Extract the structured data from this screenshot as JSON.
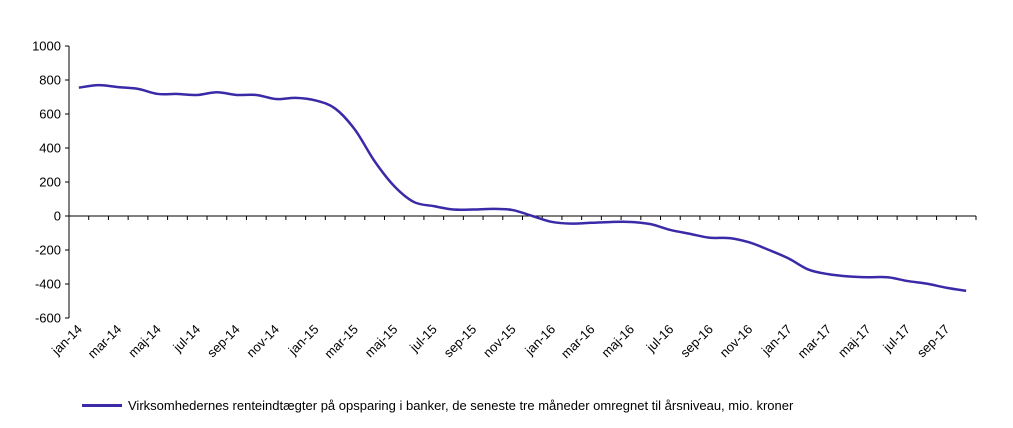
{
  "chart_data": {
    "type": "line",
    "title": "",
    "xlabel": "",
    "ylabel": "",
    "ylim": [
      -600,
      1000
    ],
    "yticks": [
      1000,
      800,
      600,
      400,
      200,
      0,
      -200,
      -400,
      -600
    ],
    "grid": false,
    "legend_position": "bottom",
    "x": [
      "jan-14",
      "feb-14",
      "mar-14",
      "apr-14",
      "maj-14",
      "jun-14",
      "jul-14",
      "aug-14",
      "sep-14",
      "okt-14",
      "nov-14",
      "dec-14",
      "jan-15",
      "feb-15",
      "mar-15",
      "apr-15",
      "maj-15",
      "jun-15",
      "jul-15",
      "aug-15",
      "sep-15",
      "okt-15",
      "nov-15",
      "dec-15",
      "jan-16",
      "feb-16",
      "mar-16",
      "apr-16",
      "maj-16",
      "jun-16",
      "jul-16",
      "aug-16",
      "sep-16",
      "okt-16",
      "nov-16",
      "dec-16",
      "jan-17",
      "feb-17",
      "mar-17",
      "apr-17",
      "maj-17",
      "jun-17",
      "jul-17",
      "aug-17",
      "sep-17",
      "okt-17"
    ],
    "xtick_labels": [
      "jan-14",
      "mar-14",
      "maj-14",
      "jul-14",
      "sep-14",
      "nov-14",
      "jan-15",
      "mar-15",
      "maj-15",
      "jul-15",
      "sep-15",
      "nov-15",
      "jan-16",
      "mar-16",
      "maj-16",
      "jul-16",
      "sep-16",
      "nov-16",
      "jan-17",
      "mar-17",
      "maj-17",
      "jul-17",
      "sep-17"
    ],
    "series": [
      {
        "name": "Virksomhedernes renteindtægter på opsparing i banker, de seneste tre måneder omregnet til årsniveau, mio. kroner",
        "color": "#3a2aa8",
        "values": [
          755,
          770,
          758,
          748,
          718,
          718,
          712,
          728,
          712,
          712,
          688,
          695,
          680,
          632,
          508,
          322,
          175,
          82,
          58,
          38,
          38,
          42,
          35,
          0,
          -35,
          -45,
          -40,
          -35,
          -35,
          -48,
          -82,
          -105,
          -128,
          -130,
          -155,
          -200,
          -250,
          -315,
          -342,
          -355,
          -360,
          -360,
          -382,
          -398,
          -422,
          -440
        ]
      }
    ]
  }
}
